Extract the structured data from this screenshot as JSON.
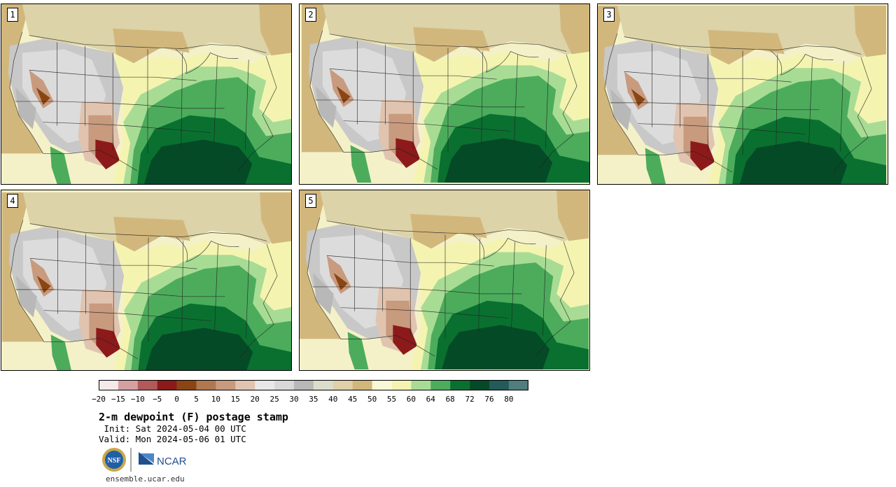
{
  "panels": [
    {
      "label": "1"
    },
    {
      "label": "2"
    },
    {
      "label": "3"
    },
    {
      "label": "4"
    },
    {
      "label": "5"
    }
  ],
  "colorbar": {
    "tick_labels": [
      "−20",
      "−15",
      "−10",
      "−5",
      "0",
      "5",
      "10",
      "15",
      "20",
      "25",
      "30",
      "35",
      "40",
      "45",
      "50",
      "55",
      "60",
      "64",
      "68",
      "72",
      "76",
      "80"
    ],
    "colors": [
      "#f5e9e9",
      "#d6a0a0",
      "#b25a5a",
      "#8c1a1a",
      "#8b4513",
      "#b07850",
      "#c89a7e",
      "#e0c4b0",
      "#e8e8e8",
      "#d8d8d8",
      "#b8b8b8",
      "#dcdccc",
      "#e0d0a8",
      "#d2b77c",
      "#f8f8d8",
      "#f4f4b0",
      "#a8dc94",
      "#4cac5c",
      "#0a7030",
      "#054a26",
      "#235a5a",
      "#507d7d"
    ]
  },
  "title": "2-m dewpoint (F) postage stamp",
  "init": " Init: Sat 2024-05-04 00 UTC",
  "valid": "Valid: Mon 2024-05-06 01 UTC",
  "logos": {
    "nsf": "NSF",
    "ncar": "NCAR"
  },
  "site": "ensemble.ucar.edu"
}
